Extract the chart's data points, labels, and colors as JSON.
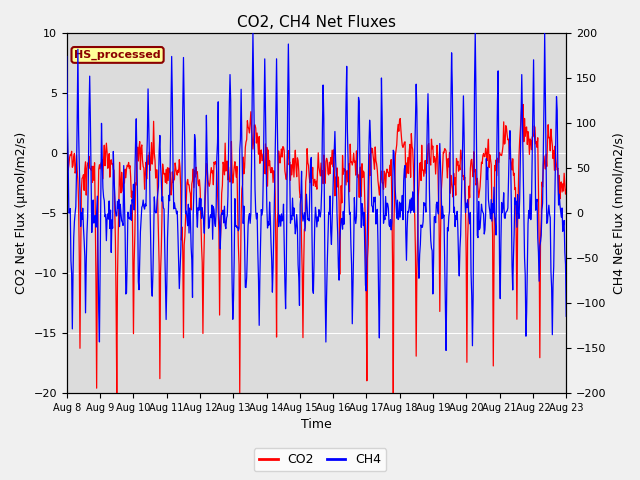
{
  "title": "CO2, CH4 Net Fluxes",
  "xlabel": "Time",
  "ylabel_left": "CO2 Net Flux (μmol/m2/s)",
  "ylabel_right": "CH4 Net Flux (nmol/m2/s)",
  "co2_ylim": [
    -20,
    10
  ],
  "ch4_ylim": [
    -200,
    200
  ],
  "annotation_text": "HS_processed",
  "annotation_bg": "#FFFF99",
  "annotation_edge": "#8B0000",
  "co2_color": "#FF0000",
  "ch4_color": "#0000FF",
  "legend_co2": "CO2",
  "legend_ch4": "CH4",
  "bg_color": "#DCDCDC",
  "fig_bg_color": "#F0F0F0",
  "grid_color": "#FFFFFF",
  "n_points": 720,
  "seed": 99
}
